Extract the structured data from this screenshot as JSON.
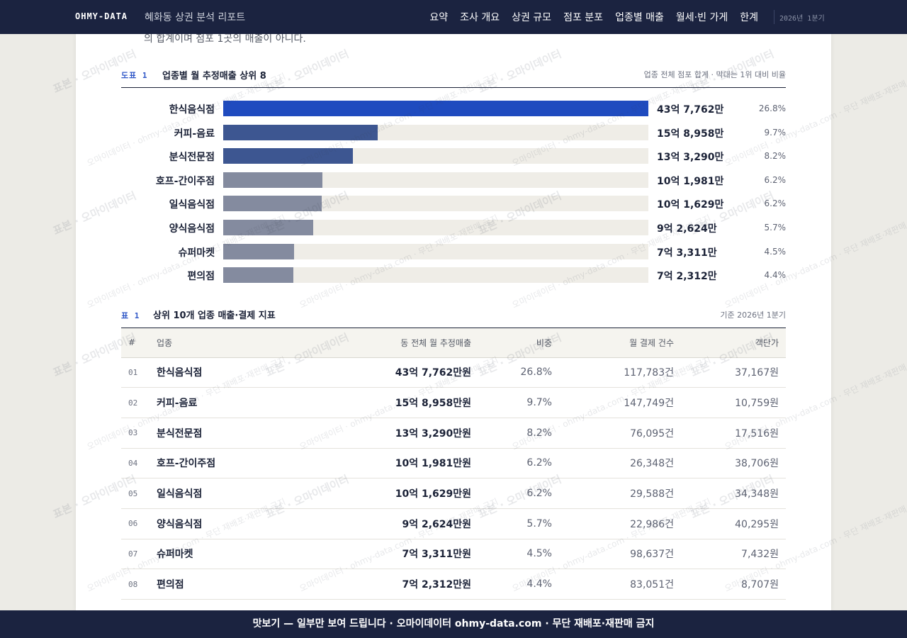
{
  "header": {
    "brand": "OHMY-DATA",
    "report_title": "혜화동 상권 분석 리포트",
    "nav": [
      "요약",
      "조사 개요",
      "상권 규모",
      "점포 분포",
      "업종별 매출",
      "월세·빈 가게",
      "한계"
    ],
    "period": "2026년 1분기"
  },
  "intro_cut": "의 합계이며 점포 1곳의 매출이 아니다.",
  "chart": {
    "fig_label": "도표 1",
    "title": "업종별 월 추정매출 상위 8",
    "note": "업종 전체 점포 합계 · 막대는 1위 대비 비율"
  },
  "chart_data": {
    "type": "bar",
    "title": "업종별 월 추정매출 상위 8",
    "categories": [
      "한식음식점",
      "커피-음료",
      "분식전문점",
      "호프-간이주점",
      "일식음식점",
      "양식음식점",
      "슈퍼마켓",
      "편의점"
    ],
    "values": [
      437762,
      158958,
      133290,
      101981,
      101629,
      92624,
      73311,
      72312
    ],
    "value_labels": [
      "43억 7,762만",
      "15억 8,958만",
      "13억 3,290만",
      "10억 1,981만",
      "10억 1,629만",
      "9억 2,624만",
      "7억 3,311만",
      "7억 2,312만"
    ],
    "shares": [
      "26.8%",
      "9.7%",
      "8.2%",
      "6.2%",
      "6.2%",
      "5.7%",
      "4.5%",
      "4.4%"
    ],
    "unit": "만원",
    "colors": [
      "#1f4bbf",
      "#3d5691",
      "#3d5691",
      "#848b9f",
      "#848b9f",
      "#848b9f",
      "#848b9f",
      "#848b9f"
    ]
  },
  "table": {
    "label": "표 1",
    "title": "상위 10개 업종 매출·결제 지표",
    "note": "기준 2026년 1분기",
    "columns": [
      "#",
      "업종",
      "동 전체 월 추정매출",
      "비중",
      "월 결제 건수",
      "객단가"
    ],
    "rows": [
      [
        "01",
        "한식음식점",
        "43억 7,762만원",
        "26.8%",
        "117,783건",
        "37,167원"
      ],
      [
        "02",
        "커피-음료",
        "15억 8,958만원",
        "9.7%",
        "147,749건",
        "10,759원"
      ],
      [
        "03",
        "분식전문점",
        "13억 3,290만원",
        "8.2%",
        "76,095건",
        "17,516원"
      ],
      [
        "04",
        "호프-간이주점",
        "10억 1,981만원",
        "6.2%",
        "26,348건",
        "38,706원"
      ],
      [
        "05",
        "일식음식점",
        "10억 1,629만원",
        "6.2%",
        "29,588건",
        "34,348원"
      ],
      [
        "06",
        "양식음식점",
        "9억 2,624만원",
        "5.7%",
        "22,986건",
        "40,295원"
      ],
      [
        "07",
        "슈퍼마켓",
        "7억 3,311만원",
        "4.5%",
        "98,637건",
        "7,432원"
      ],
      [
        "08",
        "편의점",
        "7억 2,312만원",
        "4.4%",
        "83,051건",
        "8,707원"
      ]
    ]
  },
  "footer": "맛보기 — 일부만 보여 드립니다 · 오마이데이터 ohmy-data.com · 무단 재배포·재판매 금지",
  "watermark": [
    "표본 · 오마이데이터",
    "오마이데이터 · ohmy-data.com · 무단 재배포·재판매 금지"
  ]
}
